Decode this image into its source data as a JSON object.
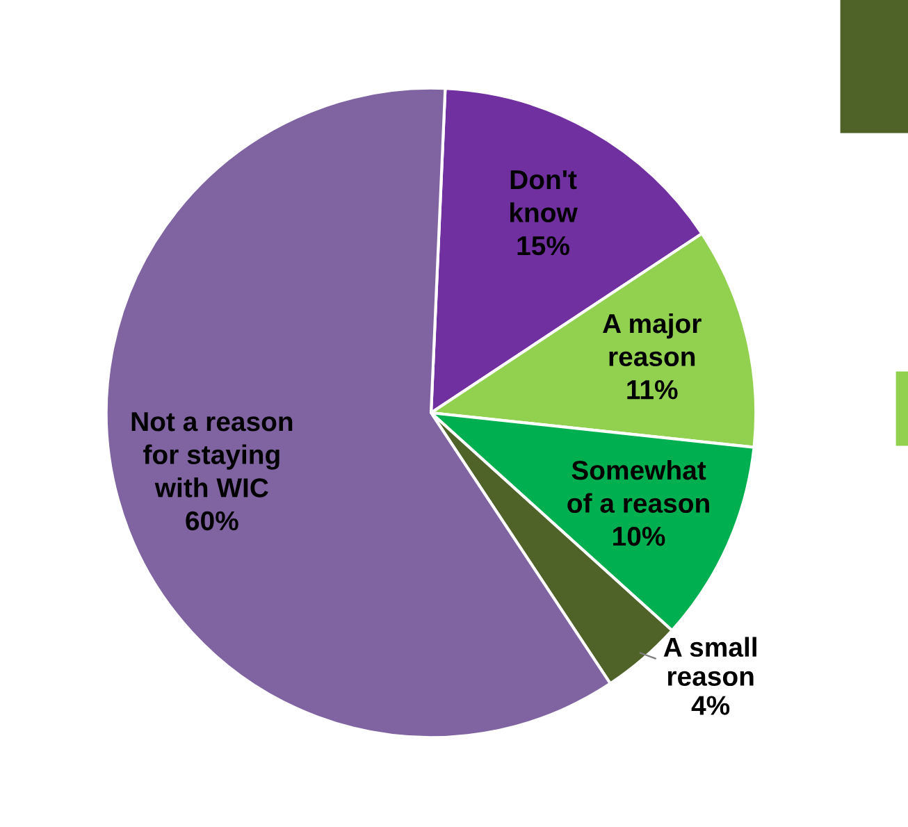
{
  "chart_data": {
    "type": "pie",
    "categories": [
      "Don't\nknow",
      "A major\nreason",
      "Somewhat\nof a reason",
      "A small\nreason",
      "Not a reason\nfor staying\nwith WIC"
    ],
    "values": [
      15,
      11,
      10,
      4,
      60
    ],
    "value_labels": [
      "15%",
      "11%",
      "10%",
      "4%",
      "60%"
    ],
    "colors": [
      "#7030a0",
      "#92d050",
      "#00b050",
      "#4f6228",
      "#8064a2"
    ],
    "legend": false
  }
}
